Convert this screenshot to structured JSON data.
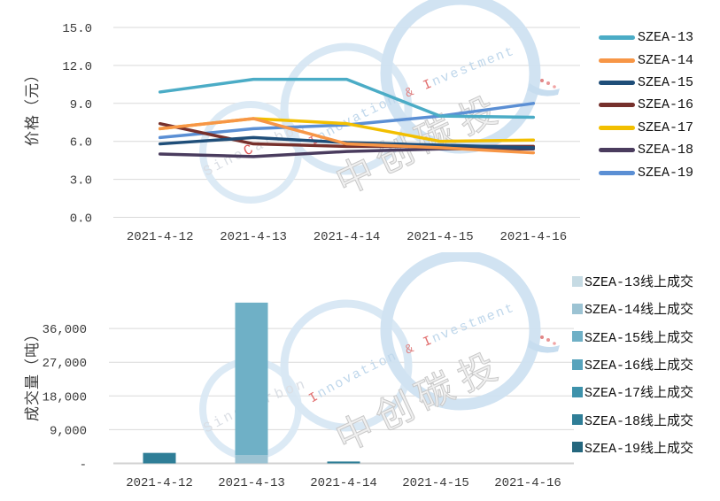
{
  "watermark": {
    "brand": "SinoCarbon",
    "tagline": "Innovation & Investment",
    "stamp": "中创碳投"
  },
  "chart_data": [
    {
      "type": "line",
      "title": "",
      "ylabel": "价格（元）",
      "xlabel": "",
      "x": [
        "2021-4-12",
        "2021-4-13",
        "2021-4-14",
        "2021-4-15",
        "2021-4-16"
      ],
      "ylim": [
        0,
        15
      ],
      "ytick_values": [
        0,
        3,
        6,
        9,
        12,
        15
      ],
      "ytick_labels": [
        "0.0",
        "3.0",
        "6.0",
        "9.0",
        "12.0",
        "15.0"
      ],
      "grid": true,
      "legend_position": "right",
      "series": [
        {
          "name": "SZEA-13",
          "color": "#4BACC6",
          "values": [
            9.9,
            10.9,
            10.9,
            8.0,
            7.9
          ]
        },
        {
          "name": "SZEA-14",
          "color": "#F79646",
          "values": [
            7.0,
            7.8,
            5.8,
            5.5,
            5.1
          ]
        },
        {
          "name": "SZEA-15",
          "color": "#1F4E79",
          "values": [
            5.8,
            6.3,
            5.9,
            5.7,
            5.5
          ]
        },
        {
          "name": "SZEA-16",
          "color": "#76302C",
          "values": [
            7.4,
            5.8,
            5.6,
            5.6,
            5.6
          ]
        },
        {
          "name": "SZEA-17",
          "color": "#F2BF00",
          "values": [
            7.0,
            7.8,
            7.4,
            6.0,
            6.1
          ]
        },
        {
          "name": "SZEA-18",
          "color": "#4A3C5E",
          "values": [
            5.0,
            4.8,
            5.2,
            5.4,
            5.4
          ]
        },
        {
          "name": "SZEA-19",
          "color": "#5B8FD4",
          "values": [
            6.3,
            7.0,
            7.3,
            8.0,
            9.0
          ]
        }
      ]
    },
    {
      "type": "bar",
      "stacked": true,
      "title": "",
      "ylabel": "成交量（吨）",
      "xlabel": "",
      "categories": [
        "2021-4-12",
        "2021-4-13",
        "2021-4-14",
        "2021-4-15",
        "2021-4-16"
      ],
      "ylim": [
        0,
        44500
      ],
      "ytick_values": [
        0,
        9000,
        18000,
        27000,
        36000
      ],
      "ytick_labels": [
        "-",
        "9,000",
        "18,000",
        "27,000",
        "36,000"
      ],
      "grid": true,
      "legend_position": "right",
      "series": [
        {
          "name": "SZEA-13线上成交",
          "color": "#C6DBE4",
          "values": [
            0,
            0,
            0,
            0,
            0
          ]
        },
        {
          "name": "SZEA-14线上成交",
          "color": "#9CC3D3",
          "values": [
            0,
            2200,
            0,
            0,
            0
          ]
        },
        {
          "name": "SZEA-15线上成交",
          "color": "#6FB0C6",
          "values": [
            0,
            40700,
            0,
            0,
            0
          ]
        },
        {
          "name": "SZEA-16线上成交",
          "color": "#57A3BC",
          "values": [
            0,
            0,
            0,
            0,
            0
          ]
        },
        {
          "name": "SZEA-17线上成交",
          "color": "#3D92AB",
          "values": [
            0,
            0,
            0,
            0,
            0
          ]
        },
        {
          "name": "SZEA-18线上成交",
          "color": "#2F7E97",
          "values": [
            2800,
            0,
            500,
            0,
            0
          ]
        },
        {
          "name": "SZEA-19线上成交",
          "color": "#25677E",
          "values": [
            0,
            0,
            0,
            0,
            0
          ]
        }
      ]
    }
  ]
}
